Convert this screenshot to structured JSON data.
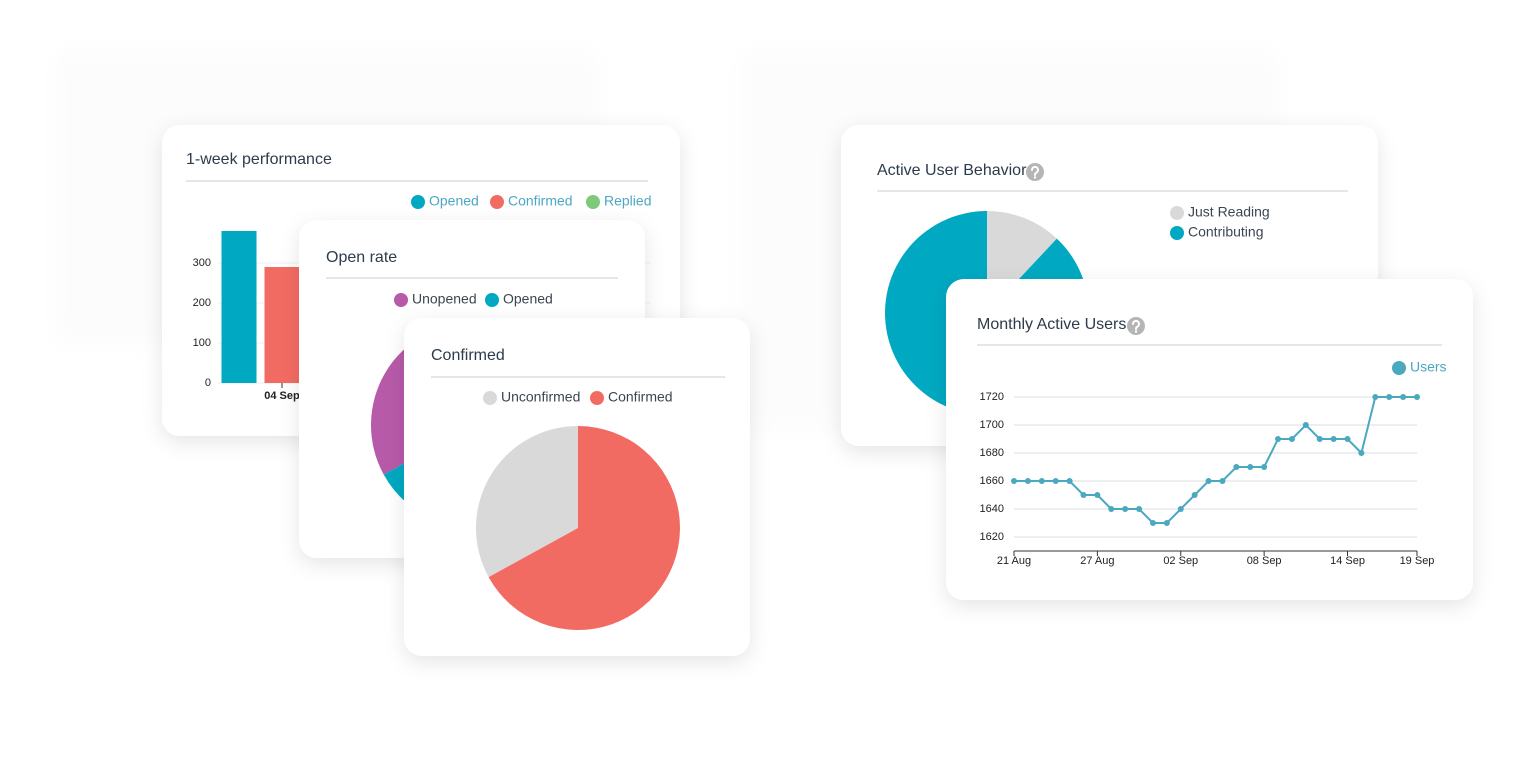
{
  "chart_data": [
    {
      "type": "bar",
      "title": "1-week performance",
      "categories": [
        "04 Sep"
      ],
      "series": [
        {
          "name": "Opened",
          "color": "#00a9c1",
          "values": [
            380
          ]
        },
        {
          "name": "Confirmed",
          "color": "#f26b63",
          "values": [
            290
          ]
        },
        {
          "name": "Replied",
          "color": "#7ec97a",
          "values": [
            null
          ]
        }
      ],
      "ylim": [
        0,
        400
      ],
      "yticks": [
        0,
        100,
        200,
        300
      ],
      "grid": true
    },
    {
      "type": "pie",
      "title": "Open rate",
      "categories": [
        "Unopened",
        "Opened"
      ],
      "values": [
        33,
        67
      ],
      "colors": [
        "#b75aa9",
        "#00a9c1"
      ],
      "counterclock": true
    },
    {
      "type": "pie",
      "title": "Confirmed",
      "categories": [
        "Unconfirmed",
        "Confirmed"
      ],
      "values": [
        33,
        67
      ],
      "colors": [
        "#d9d9d9",
        "#f26b63"
      ],
      "counterclock": true
    },
    {
      "type": "pie",
      "title": "Active User Behavior",
      "categories": [
        "Just Reading",
        "Contributing"
      ],
      "values": [
        12,
        88
      ],
      "colors": [
        "#d9d9d9",
        "#00a9c1"
      ],
      "counterclock": false
    },
    {
      "type": "line",
      "title": "Monthly Active Users",
      "categories": [
        "21 Aug",
        null,
        null,
        null,
        null,
        null,
        "27 Aug",
        null,
        null,
        null,
        null,
        null,
        "02 Sep",
        null,
        null,
        null,
        null,
        null,
        "08 Sep",
        null,
        null,
        null,
        null,
        null,
        "14 Sep",
        null,
        null,
        null,
        null,
        "19 Sep"
      ],
      "series": [
        {
          "name": "Users",
          "color": "#4aa8c0",
          "values": [
            1660,
            1660,
            1660,
            1660,
            1660,
            1650,
            1650,
            1640,
            1640,
            1640,
            1630,
            1630,
            1640,
            1650,
            1660,
            1660,
            1670,
            1670,
            1670,
            1690,
            1690,
            1700,
            1690,
            1690,
            1690,
            1680,
            1720,
            1720,
            1720,
            1720
          ]
        }
      ],
      "ylim": [
        1610,
        1730
      ],
      "yticks": [
        1620,
        1640,
        1660,
        1680,
        1700,
        1720
      ],
      "grid": true
    }
  ]
}
